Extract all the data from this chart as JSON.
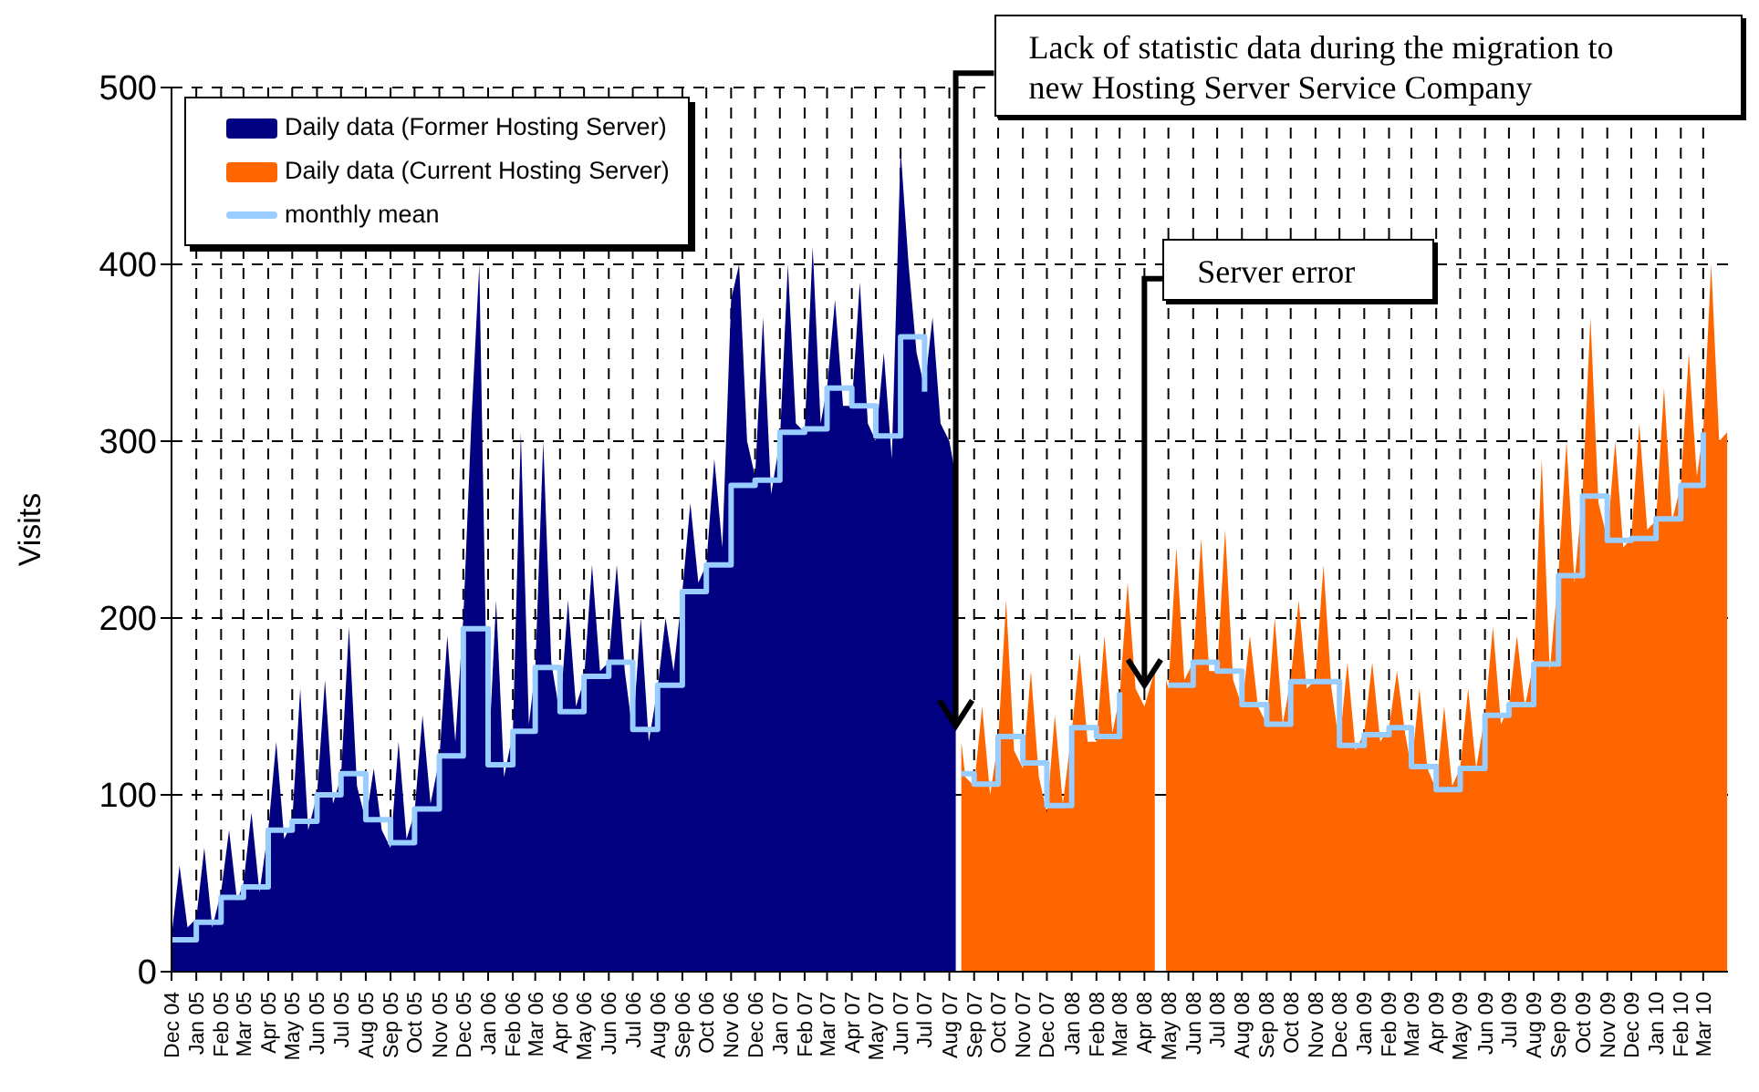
{
  "chart_data": {
    "type": "area",
    "ylabel": "Visits",
    "ylim": [
      0,
      500
    ],
    "yticks": [
      0,
      100,
      200,
      300,
      400,
      500
    ],
    "xlim": [
      "2004-12-01",
      "2010-04-01"
    ],
    "grid": true,
    "legend": "top left",
    "xticks": [
      {
        "value": "2004-12",
        "label": "Dec 04"
      },
      {
        "value": "2005-01",
        "label": "Jan 05"
      },
      {
        "value": "2005-02",
        "label": "Feb 05"
      },
      {
        "value": "2005-03",
        "label": "Mar 05"
      },
      {
        "value": "2005-04",
        "label": "Apr 05"
      },
      {
        "value": "2005-05",
        "label": "May 05"
      },
      {
        "value": "2005-06",
        "label": "Jun 05"
      },
      {
        "value": "2005-07",
        "label": "Jul 05"
      },
      {
        "value": "2005-08",
        "label": "Aug 05"
      },
      {
        "value": "2005-09",
        "label": "Sep 05"
      },
      {
        "value": "2005-10",
        "label": "Oct 05"
      },
      {
        "value": "2005-11",
        "label": "Nov 05"
      },
      {
        "value": "2005-12",
        "label": "Dec 05"
      },
      {
        "value": "2006-01",
        "label": "Jan 06"
      },
      {
        "value": "2006-02",
        "label": "Feb 06"
      },
      {
        "value": "2006-03",
        "label": "Mar 06"
      },
      {
        "value": "2006-04",
        "label": "Apr 06"
      },
      {
        "value": "2006-05",
        "label": "May 06"
      },
      {
        "value": "2006-06",
        "label": "Jun 06"
      },
      {
        "value": "2006-07",
        "label": "Jul 06"
      },
      {
        "value": "2006-08",
        "label": "Aug 06"
      },
      {
        "value": "2006-09",
        "label": "Sep 06"
      },
      {
        "value": "2006-10",
        "label": "Oct 06"
      },
      {
        "value": "2006-11",
        "label": "Nov 06"
      },
      {
        "value": "2006-12",
        "label": "Dec 06"
      },
      {
        "value": "2007-01",
        "label": "Jan 07"
      },
      {
        "value": "2007-02",
        "label": "Feb 07"
      },
      {
        "value": "2007-03",
        "label": "Mar 07"
      },
      {
        "value": "2007-04",
        "label": "Apr 07"
      },
      {
        "value": "2007-05",
        "label": "May 07"
      },
      {
        "value": "2007-06",
        "label": "Jun 07"
      },
      {
        "value": "2007-07",
        "label": "Jul 07"
      },
      {
        "value": "2007-08",
        "label": "Aug 07"
      },
      {
        "value": "2007-09",
        "label": "Sep 07"
      },
      {
        "value": "2007-10",
        "label": "Oct 07"
      },
      {
        "value": "2007-11",
        "label": "Nov 07"
      },
      {
        "value": "2007-12",
        "label": "Dec 07"
      },
      {
        "value": "2008-01",
        "label": "Jan 08"
      },
      {
        "value": "2008-02",
        "label": "Feb 08"
      },
      {
        "value": "2008-03",
        "label": "Mar 08"
      },
      {
        "value": "2008-04",
        "label": "Apr 08"
      },
      {
        "value": "2008-05",
        "label": "May 08"
      },
      {
        "value": "2008-06",
        "label": "Jun 08"
      },
      {
        "value": "2008-07",
        "label": "Jul 08"
      },
      {
        "value": "2008-08",
        "label": "Aug 08"
      },
      {
        "value": "2008-09",
        "label": "Sep 08"
      },
      {
        "value": "2008-10",
        "label": "Oct 08"
      },
      {
        "value": "2008-11",
        "label": "Nov 08"
      },
      {
        "value": "2008-12",
        "label": "Dec 08"
      },
      {
        "value": "2009-01",
        "label": "Jan 09"
      },
      {
        "value": "2009-02",
        "label": "Feb 09"
      },
      {
        "value": "2009-03",
        "label": "Mar 09"
      },
      {
        "value": "2009-04",
        "label": "Apr 09"
      },
      {
        "value": "2009-05",
        "label": "May 09"
      },
      {
        "value": "2009-06",
        "label": "Jun 09"
      },
      {
        "value": "2009-07",
        "label": "Jul 09"
      },
      {
        "value": "2009-08",
        "label": "Aug 09"
      },
      {
        "value": "2009-09",
        "label": "Sep 09"
      },
      {
        "value": "2009-10",
        "label": "Oct 09"
      },
      {
        "value": "2009-11",
        "label": "Nov 09"
      },
      {
        "value": "2009-12",
        "label": "Dec 09"
      },
      {
        "value": "2010-01",
        "label": "Jan 10"
      },
      {
        "value": "2010-02",
        "label": "Feb 10"
      },
      {
        "value": "2010-03",
        "label": "Mar 10"
      }
    ],
    "series": [
      {
        "name": "Daily data (Former Hosting Server)",
        "color": "#000080",
        "x": [
          "2004-12-01",
          "2004-12-11",
          "2004-12-21",
          "2005-01-01",
          "2005-01-11",
          "2005-01-21",
          "2005-02-01",
          "2005-02-11",
          "2005-02-21",
          "2005-03-01",
          "2005-03-11",
          "2005-03-21",
          "2005-04-01",
          "2005-04-11",
          "2005-04-21",
          "2005-05-01",
          "2005-05-11",
          "2005-05-21",
          "2005-06-01",
          "2005-06-11",
          "2005-06-21",
          "2005-07-01",
          "2005-07-11",
          "2005-07-21",
          "2005-08-01",
          "2005-08-11",
          "2005-08-21",
          "2005-09-01",
          "2005-09-11",
          "2005-09-21",
          "2005-10-01",
          "2005-10-11",
          "2005-10-21",
          "2005-11-01",
          "2005-11-11",
          "2005-11-21",
          "2005-12-01",
          "2005-12-11",
          "2005-12-21",
          "2006-01-01",
          "2006-01-11",
          "2006-01-21",
          "2006-02-01",
          "2006-02-11",
          "2006-02-21",
          "2006-03-01",
          "2006-03-11",
          "2006-03-21",
          "2006-04-01",
          "2006-04-11",
          "2006-04-21",
          "2006-05-01",
          "2006-05-11",
          "2006-05-21",
          "2006-06-01",
          "2006-06-11",
          "2006-06-21",
          "2006-07-01",
          "2006-07-11",
          "2006-07-21",
          "2006-08-01",
          "2006-08-11",
          "2006-08-21",
          "2006-09-01",
          "2006-09-11",
          "2006-09-21",
          "2006-10-01",
          "2006-10-11",
          "2006-10-21",
          "2006-11-01",
          "2006-11-11",
          "2006-11-21",
          "2006-12-01",
          "2006-12-11",
          "2006-12-21",
          "2007-01-01",
          "2007-01-11",
          "2007-01-21",
          "2007-02-01",
          "2007-02-11",
          "2007-02-21",
          "2007-03-01",
          "2007-03-11",
          "2007-03-21",
          "2007-04-01",
          "2007-04-11",
          "2007-04-21",
          "2007-05-01",
          "2007-05-11",
          "2007-05-21",
          "2007-06-01",
          "2007-06-11",
          "2007-06-21",
          "2007-07-01",
          "2007-07-11",
          "2007-07-21",
          "2007-08-01",
          "2007-08-09"
        ],
        "values": [
          20,
          60,
          25,
          30,
          70,
          25,
          45,
          80,
          40,
          50,
          90,
          45,
          80,
          130,
          75,
          85,
          160,
          80,
          100,
          165,
          95,
          110,
          195,
          105,
          85,
          115,
          80,
          70,
          130,
          75,
          90,
          145,
          95,
          120,
          190,
          130,
          200,
          310,
          400,
          115,
          210,
          110,
          135,
          305,
          140,
          170,
          300,
          175,
          145,
          210,
          150,
          165,
          230,
          170,
          175,
          230,
          170,
          135,
          200,
          130,
          160,
          200,
          170,
          215,
          265,
          220,
          230,
          290,
          240,
          380,
          400,
          300,
          280,
          370,
          270,
          300,
          400,
          310,
          305,
          410,
          310,
          330,
          380,
          320,
          320,
          390,
          310,
          300,
          350,
          290,
          465,
          400,
          350,
          330,
          370,
          310,
          300,
          280
        ]
      },
      {
        "name": "Daily data (Current Hosting Server)",
        "color": "#ff6600",
        "x": [
          "2007-08-16",
          "2007-08-21",
          "2007-09-01",
          "2007-09-11",
          "2007-09-21",
          "2007-10-01",
          "2007-10-11",
          "2007-10-21",
          "2007-11-01",
          "2007-11-11",
          "2007-11-21",
          "2007-12-01",
          "2007-12-11",
          "2007-12-21",
          "2008-01-01",
          "2008-01-11",
          "2008-01-21",
          "2008-02-01",
          "2008-02-11",
          "2008-02-21",
          "2008-03-01",
          "2008-03-11",
          "2008-03-21",
          "2008-04-01",
          "2008-04-14",
          "2008-04-20",
          "2008-04-28",
          "2008-05-01",
          "2008-05-11",
          "2008-05-21",
          "2008-06-01",
          "2008-06-11",
          "2008-06-21",
          "2008-07-01",
          "2008-07-11",
          "2008-07-21",
          "2008-08-01",
          "2008-08-11",
          "2008-08-21",
          "2008-09-01",
          "2008-09-11",
          "2008-09-21",
          "2008-10-01",
          "2008-10-11",
          "2008-10-21",
          "2008-11-01",
          "2008-11-11",
          "2008-11-21",
          "2008-12-01",
          "2008-12-11",
          "2008-12-21",
          "2009-01-01",
          "2009-01-11",
          "2009-01-21",
          "2009-02-01",
          "2009-02-11",
          "2009-02-21",
          "2009-03-01",
          "2009-03-11",
          "2009-03-21",
          "2009-04-01",
          "2009-04-11",
          "2009-04-21",
          "2009-05-01",
          "2009-05-11",
          "2009-05-21",
          "2009-06-01",
          "2009-06-11",
          "2009-06-21",
          "2009-07-01",
          "2009-07-11",
          "2009-07-21",
          "2009-08-01",
          "2009-08-11",
          "2009-08-21",
          "2009-09-01",
          "2009-09-11",
          "2009-09-21",
          "2009-10-01",
          "2009-10-11",
          "2009-10-21",
          "2009-11-01",
          "2009-11-11",
          "2009-11-21",
          "2009-12-01",
          "2009-12-11",
          "2009-12-21",
          "2010-01-01",
          "2010-01-11",
          "2010-01-21",
          "2010-02-01",
          "2010-02-11",
          "2010-02-21",
          "2010-03-01",
          "2010-03-11",
          "2010-03-21",
          "2010-03-31"
        ],
        "values": [
          130,
          110,
          105,
          150,
          100,
          130,
          210,
          125,
          115,
          170,
          110,
          90,
          145,
          95,
          135,
          180,
          130,
          130,
          190,
          135,
          155,
          220,
          160,
          150,
          170,
          null,
          165,
          160,
          240,
          165,
          175,
          245,
          170,
          170,
          250,
          165,
          150,
          190,
          150,
          140,
          200,
          140,
          165,
          210,
          160,
          165,
          230,
          160,
          128,
          175,
          125,
          135,
          175,
          130,
          138,
          170,
          135,
          115,
          160,
          115,
          103,
          150,
          105,
          115,
          160,
          115,
          145,
          195,
          140,
          150,
          190,
          150,
          175,
          290,
          170,
          225,
          300,
          220,
          270,
          370,
          265,
          245,
          300,
          240,
          245,
          310,
          250,
          255,
          330,
          255,
          275,
          350,
          280,
          305,
          400,
          300,
          305
        ]
      },
      {
        "name": "monthly mean",
        "type": "step",
        "color": "#99ccff",
        "x": [
          "2004-12-01",
          "2005-01-01",
          "2005-02-01",
          "2005-03-01",
          "2005-04-01",
          "2005-05-01",
          "2005-06-01",
          "2005-07-01",
          "2005-08-01",
          "2005-09-01",
          "2005-10-01",
          "2005-11-01",
          "2005-12-01",
          "2006-01-01",
          "2006-02-01",
          "2006-03-01",
          "2006-04-01",
          "2006-05-01",
          "2006-06-01",
          "2006-07-01",
          "2006-08-01",
          "2006-09-01",
          "2006-10-01",
          "2006-11-01",
          "2006-12-01",
          "2007-01-01",
          "2007-02-01",
          "2007-03-01",
          "2007-04-01",
          "2007-05-01",
          "2007-06-01",
          "2007-07-01",
          "2007-08-01",
          "2007-08-16",
          "2007-09-01",
          "2007-10-01",
          "2007-11-01",
          "2007-12-01",
          "2008-01-01",
          "2008-02-01",
          "2008-03-01",
          "2008-04-01",
          "2008-05-01",
          "2008-06-01",
          "2008-07-01",
          "2008-08-01",
          "2008-09-01",
          "2008-10-01",
          "2008-11-01",
          "2008-12-01",
          "2009-01-01",
          "2009-02-01",
          "2009-03-01",
          "2009-04-01",
          "2009-05-01",
          "2009-06-01",
          "2009-07-01",
          "2009-08-01",
          "2009-09-01",
          "2009-10-01",
          "2009-11-01",
          "2009-12-01",
          "2010-01-01",
          "2010-02-01",
          "2010-03-01"
        ],
        "values": [
          18,
          28,
          42,
          48,
          80,
          85,
          100,
          112,
          86,
          73,
          92,
          122,
          194,
          117,
          136,
          172,
          147,
          167,
          175,
          137,
          162,
          215,
          230,
          275,
          278,
          305,
          307,
          330,
          320,
          303,
          359,
          328,
          null,
          112,
          106,
          133,
          118,
          94,
          138,
          133,
          158,
          null,
          162,
          175,
          170,
          151,
          140,
          164,
          164,
          128,
          134,
          138,
          116,
          103,
          115,
          145,
          151,
          174,
          224,
          269,
          244,
          245,
          256,
          275,
          305
        ]
      }
    ],
    "annotations": [
      {
        "text": "Lack of statistic data during the migration to new Hosting Server Service Company",
        "x": "2007-08-09",
        "y": 139
      },
      {
        "text": "Server error",
        "x": "2008-04-01",
        "y": 162
      }
    ]
  }
}
